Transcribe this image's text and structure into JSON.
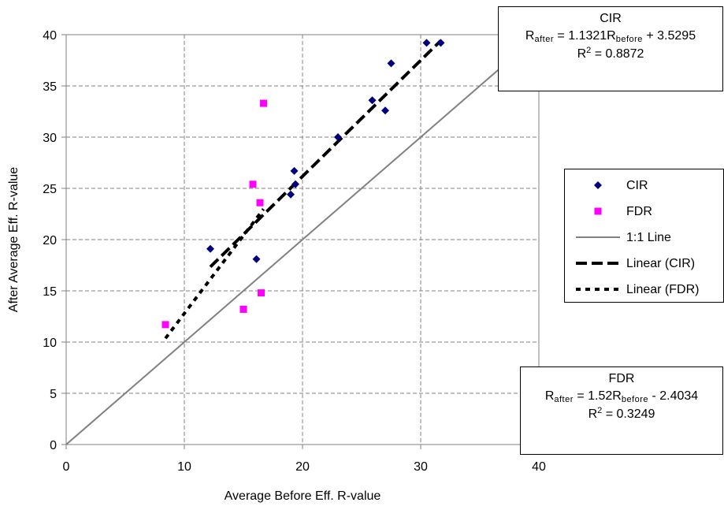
{
  "chart_data": {
    "type": "scatter",
    "xlabel": "Average Before Eff. R-value",
    "ylabel": "After Average Eff. R-value",
    "xlim": [
      0,
      40
    ],
    "ylim": [
      0,
      40
    ],
    "xticks": [
      "0",
      "10",
      "20",
      "30",
      "40"
    ],
    "yticks": [
      "0",
      "5",
      "10",
      "15",
      "20",
      "25",
      "30",
      "35",
      "40"
    ],
    "grid": "dashed",
    "legend_position": "right",
    "series": [
      {
        "name": "CIR",
        "kind": "points",
        "marker": "diamond",
        "color": "#000080",
        "x": [
          12.2,
          16.1,
          19.0,
          19.3,
          19.4,
          23.0,
          25.9,
          27.0,
          27.5,
          30.5,
          31.7
        ],
        "y": [
          19.1,
          18.1,
          24.4,
          26.7,
          25.4,
          30.0,
          33.6,
          32.6,
          37.2,
          39.2,
          39.2
        ]
      },
      {
        "name": "FDR",
        "kind": "points",
        "marker": "square",
        "color": "#ff00ff",
        "x": [
          8.4,
          15.0,
          15.8,
          16.4,
          16.5,
          16.7
        ],
        "y": [
          11.7,
          13.2,
          25.4,
          23.6,
          14.8,
          33.3
        ]
      },
      {
        "name": "1:1 Line",
        "kind": "line",
        "style": "solid",
        "color": "#808080",
        "x": [
          0,
          40
        ],
        "y": [
          0,
          40
        ]
      },
      {
        "name": "Linear (CIR)",
        "kind": "line",
        "style": "dashed",
        "color": "#000000",
        "x": [
          12.2,
          31.7
        ],
        "y": [
          17.34,
          39.42
        ]
      },
      {
        "name": "Linear (FDR)",
        "kind": "line",
        "style": "dotted",
        "color": "#000000",
        "x": [
          8.4,
          16.7
        ],
        "y": [
          10.36,
          22.98
        ]
      }
    ],
    "annotations": {
      "cir": {
        "title": "CIR",
        "eq_lhs": "R",
        "eq_lhs_sub": "after",
        "eq_mid": " = 1.1321R",
        "eq_mid_sub": "before",
        "eq_tail": " + 3.5295",
        "r2_label": "R",
        "r2_sup": "2",
        "r2_value": " = 0.8872"
      },
      "fdr": {
        "title": "FDR",
        "eq_lhs": "R",
        "eq_lhs_sub": "after",
        "eq_mid": " = 1.52R",
        "eq_mid_sub": "before",
        "eq_tail": " - 2.4034",
        "r2_label": "R",
        "r2_sup": "2",
        "r2_value": " = 0.3249"
      }
    }
  }
}
